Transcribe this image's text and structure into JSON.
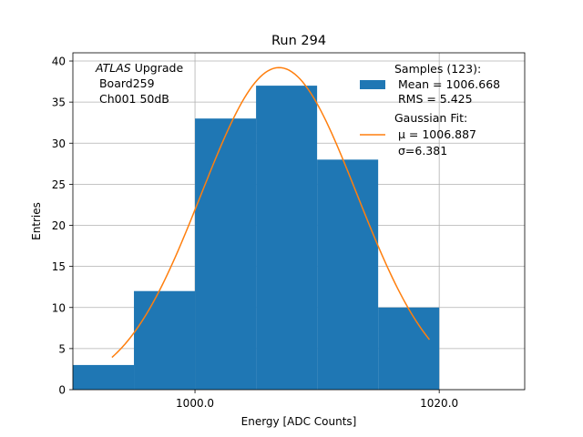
{
  "chart_data": {
    "type": "bar",
    "title": "Run 294",
    "xlabel": "Energy [ADC Counts]",
    "ylabel": "Entries",
    "xlim": [
      990,
      1027
    ],
    "ylim": [
      0,
      41
    ],
    "xticks": [
      1000,
      1020
    ],
    "xtick_labels": [
      "1000.0",
      "1020.0"
    ],
    "yticks": [
      0,
      5,
      10,
      15,
      20,
      25,
      30,
      35,
      40
    ],
    "ytick_labels": [
      "0",
      "5",
      "10",
      "15",
      "20",
      "25",
      "30",
      "35",
      "40"
    ],
    "grid": true,
    "histogram": {
      "name": "Samples (123):",
      "color": "#1f77b4",
      "bins": [
        {
          "x0": 990,
          "x1": 995,
          "count": 3
        },
        {
          "x0": 995,
          "x1": 1000,
          "count": 12
        },
        {
          "x0": 1000,
          "x1": 1005,
          "count": 33
        },
        {
          "x0": 1005,
          "x1": 1010,
          "count": 37
        },
        {
          "x0": 1010,
          "x1": 1015,
          "count": 28
        },
        {
          "x0": 1015,
          "x1": 1020,
          "count": 10
        }
      ]
    },
    "fit": {
      "name": "Gaussian Fit:",
      "color": "#ff7f0e",
      "mu": 1006.887,
      "sigma": 6.381,
      "amplitude": 39.2,
      "x_range": [
        993.2,
        1019.2
      ]
    },
    "legend": {
      "position": "top-right",
      "samples_lines": [
        "Samples (123):",
        " Mean = 1006.668",
        " RMS = 5.425"
      ],
      "fit_lines": [
        "Gaussian Fit:",
        " μ = 1006.887",
        " σ=6.381"
      ]
    },
    "annotation": {
      "position": "top-left",
      "atlas": "ATLAS",
      "upgrade": " Upgrade",
      "lines": [
        " Board259",
        " Ch001 50dB"
      ]
    }
  }
}
